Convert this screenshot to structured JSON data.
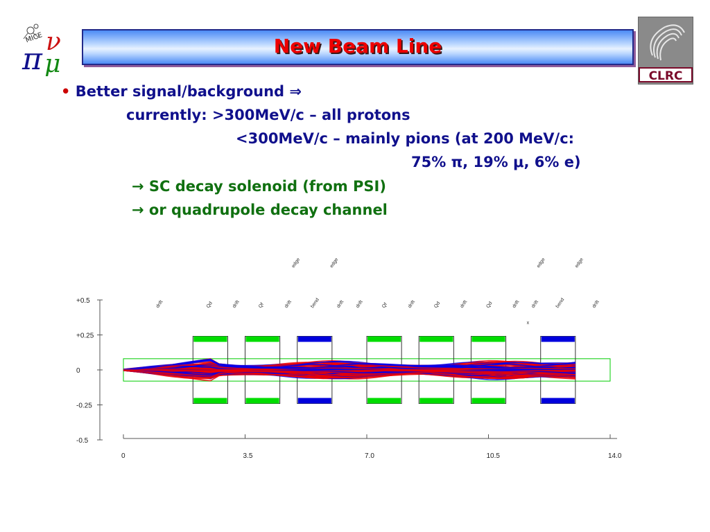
{
  "title": "New Beam Line",
  "logos": {
    "left_name": "MICE",
    "right_name": "CLRC"
  },
  "bullets": {
    "main": "Better signal/background",
    "main_arrow": "⇒",
    "line1": "currently: >300MeV/c – all protons",
    "line2": "<300MeV/c – mainly pions (at 200 MeV/c:",
    "line3": "75% π, 19% μ, 6% e)",
    "opt1_arrow": "→",
    "opt1": "SC decay solenoid (from PSI)",
    "opt2_arrow": "→",
    "opt2": "or quadrupole decay channel"
  },
  "chart_data": {
    "type": "scatter",
    "description_visible": "beam envelope trace through quadrupole channel",
    "x_ticks": [
      "0",
      "3.5",
      "7.0",
      "10.5",
      "14.0"
    ],
    "y_ticks": [
      "+0.5",
      "+0.25",
      "0",
      "-0.25",
      "-0.5"
    ],
    "xlim": [
      0,
      14.0
    ],
    "ylim": [
      -0.5,
      0.5
    ],
    "series_colors": {
      "trace_a": "#0000ee",
      "trace_b": "#ee0000",
      "magnet_quad": "#00dd00",
      "magnet_bend": "#0000dd",
      "aperture": "#00cc00"
    },
    "elements": [
      {
        "label": "drift",
        "x": 1.0
      },
      {
        "label": "Qd",
        "x": 2.45
      },
      {
        "label": "drift",
        "x": 3.2
      },
      {
        "label": "Qf",
        "x": 3.95
      },
      {
        "label": "drift",
        "x": 4.7
      },
      {
        "label": "edge",
        "x": 4.9,
        "upper": true
      },
      {
        "label": "bend",
        "x": 5.45
      },
      {
        "label": "edge",
        "x": 6.0,
        "upper": true
      },
      {
        "label": "drift",
        "x": 6.2
      },
      {
        "label": "drift",
        "x": 6.75
      },
      {
        "label": "Qf",
        "x": 7.5
      },
      {
        "label": "drift",
        "x": 8.25
      },
      {
        "label": "Qd",
        "x": 9.0
      },
      {
        "label": "drift",
        "x": 9.75
      },
      {
        "label": "Qd",
        "x": 10.5
      },
      {
        "label": "drift",
        "x": 11.25
      },
      {
        "label": "drift",
        "x": 11.8
      },
      {
        "label": "edge",
        "x": 11.95,
        "upper": true
      },
      {
        "label": "bend",
        "x": 12.5
      },
      {
        "label": "edge",
        "x": 13.05,
        "upper": true
      },
      {
        "label": "drift",
        "x": 13.55
      }
    ],
    "marker_label": "x",
    "magnets": [
      {
        "type": "quad",
        "x0": 2.0,
        "x1": 3.0
      },
      {
        "type": "quad",
        "x0": 3.5,
        "x1": 4.5
      },
      {
        "type": "bend",
        "x0": 5.0,
        "x1": 6.0
      },
      {
        "type": "quad",
        "x0": 7.0,
        "x1": 8.0
      },
      {
        "type": "quad",
        "x0": 8.5,
        "x1": 9.5
      },
      {
        "type": "quad",
        "x0": 10.0,
        "x1": 11.0
      },
      {
        "type": "bend",
        "x0": 12.0,
        "x1": 13.0
      }
    ]
  }
}
